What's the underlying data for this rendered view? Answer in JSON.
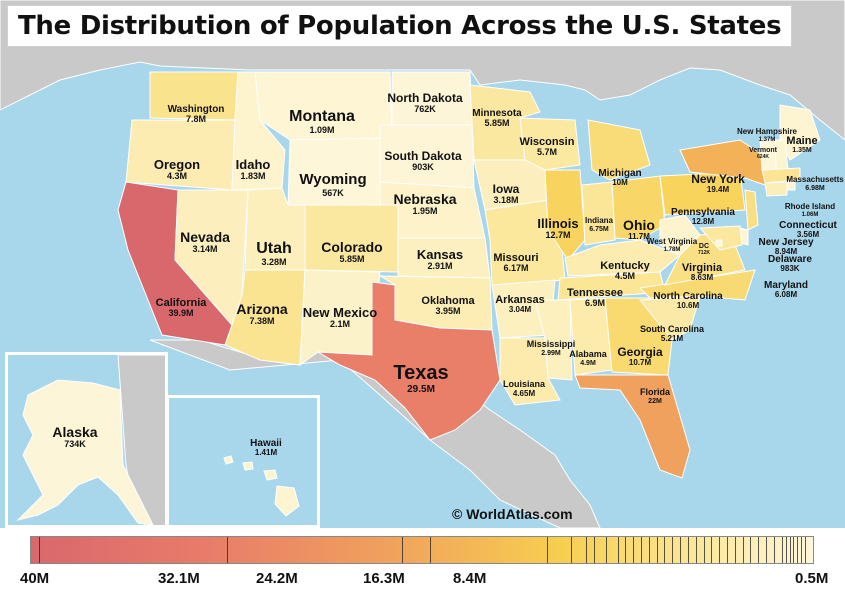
{
  "title": "The Distribution of Population Across the U.S. States",
  "credit": "© WorldAtlas.com",
  "colors": {
    "water": "#a8d6ea",
    "land_outside": "#c8c8c8",
    "scale_high": "#d9686d",
    "scale_mid": "#f0a05d",
    "scale_low": "#fdf6da"
  },
  "legend": {
    "labels": [
      "40M",
      "32.1M",
      "24.2M",
      "16.3M",
      "8.4M",
      "0.5M"
    ],
    "max": 40,
    "min": 0.5
  },
  "states": [
    {
      "name": "Washington",
      "value": "7.8M",
      "pop": 7.8
    },
    {
      "name": "Oregon",
      "value": "4.3M",
      "pop": 4.3
    },
    {
      "name": "California",
      "value": "39.9M",
      "pop": 39.9
    },
    {
      "name": "Idaho",
      "value": "1.83M",
      "pop": 1.83
    },
    {
      "name": "Nevada",
      "value": "3.14M",
      "pop": 3.14
    },
    {
      "name": "Montana",
      "value": "1.09M",
      "pop": 1.09
    },
    {
      "name": "Wyoming",
      "value": "567K",
      "pop": 0.567
    },
    {
      "name": "Utah",
      "value": "3.28M",
      "pop": 3.28
    },
    {
      "name": "Arizona",
      "value": "7.38M",
      "pop": 7.38
    },
    {
      "name": "Colorado",
      "value": "5.85M",
      "pop": 5.85
    },
    {
      "name": "New Mexico",
      "value": "2.1M",
      "pop": 2.1
    },
    {
      "name": "North Dakota",
      "value": "762K",
      "pop": 0.762
    },
    {
      "name": "South Dakota",
      "value": "903K",
      "pop": 0.903
    },
    {
      "name": "Nebraska",
      "value": "1.95M",
      "pop": 1.95
    },
    {
      "name": "Kansas",
      "value": "2.91M",
      "pop": 2.91
    },
    {
      "name": "Oklahoma",
      "value": "3.95M",
      "pop": 3.95
    },
    {
      "name": "Texas",
      "value": "29.5M",
      "pop": 29.5
    },
    {
      "name": "Minnesota",
      "value": "5.85M",
      "pop": 5.85
    },
    {
      "name": "Iowa",
      "value": "3.18M",
      "pop": 3.18
    },
    {
      "name": "Missouri",
      "value": "6.17M",
      "pop": 6.17
    },
    {
      "name": "Arkansas",
      "value": "3.04M",
      "pop": 3.04
    },
    {
      "name": "Louisiana",
      "value": "4.65M",
      "pop": 4.65
    },
    {
      "name": "Wisconsin",
      "value": "5.7M",
      "pop": 5.7
    },
    {
      "name": "Illinois",
      "value": "12.7M",
      "pop": 12.7
    },
    {
      "name": "Michigan",
      "value": "10M",
      "pop": 10
    },
    {
      "name": "Indiana",
      "value": "6.75M",
      "pop": 6.75
    },
    {
      "name": "Ohio",
      "value": "11.7M",
      "pop": 11.7
    },
    {
      "name": "Kentucky",
      "value": "4.5M",
      "pop": 4.5
    },
    {
      "name": "Tennessee",
      "value": "6.9M",
      "pop": 6.9
    },
    {
      "name": "Mississippi",
      "value": "2.99M",
      "pop": 2.99
    },
    {
      "name": "Alabama",
      "value": "4.9M",
      "pop": 4.9
    },
    {
      "name": "Georgia",
      "value": "10.7M",
      "pop": 10.7
    },
    {
      "name": "Florida",
      "value": "22M",
      "pop": 22
    },
    {
      "name": "South Carolina",
      "value": "5.21M",
      "pop": 5.21
    },
    {
      "name": "North Carolina",
      "value": "10.6M",
      "pop": 10.6
    },
    {
      "name": "Virginia",
      "value": "8.63M",
      "pop": 8.63
    },
    {
      "name": "West Virginia",
      "value": "1.78M",
      "pop": 1.78
    },
    {
      "name": "Pennsylvania",
      "value": "12.8M",
      "pop": 12.8
    },
    {
      "name": "New York",
      "value": "19.4M",
      "pop": 19.4
    },
    {
      "name": "Maine",
      "value": "1.35M",
      "pop": 1.35
    },
    {
      "name": "Vermont",
      "value": "624K",
      "pop": 0.624
    },
    {
      "name": "New Hampshire",
      "value": "1.37M",
      "pop": 1.37
    },
    {
      "name": "Massachusetts",
      "value": "6.98M",
      "pop": 6.98
    },
    {
      "name": "Rhode Island",
      "value": "1.06M",
      "pop": 1.06
    },
    {
      "name": "Connecticut",
      "value": "3.56M",
      "pop": 3.56
    },
    {
      "name": "New Jersey",
      "value": "8.94M",
      "pop": 8.94
    },
    {
      "name": "Delaware",
      "value": "983K",
      "pop": 0.983
    },
    {
      "name": "Maryland",
      "value": "6.08M",
      "pop": 6.08
    },
    {
      "name": "DC",
      "value": "712K",
      "pop": 0.712
    },
    {
      "name": "Alaska",
      "value": "734K",
      "pop": 0.734
    },
    {
      "name": "Hawaii",
      "value": "1.41M",
      "pop": 1.41
    }
  ]
}
